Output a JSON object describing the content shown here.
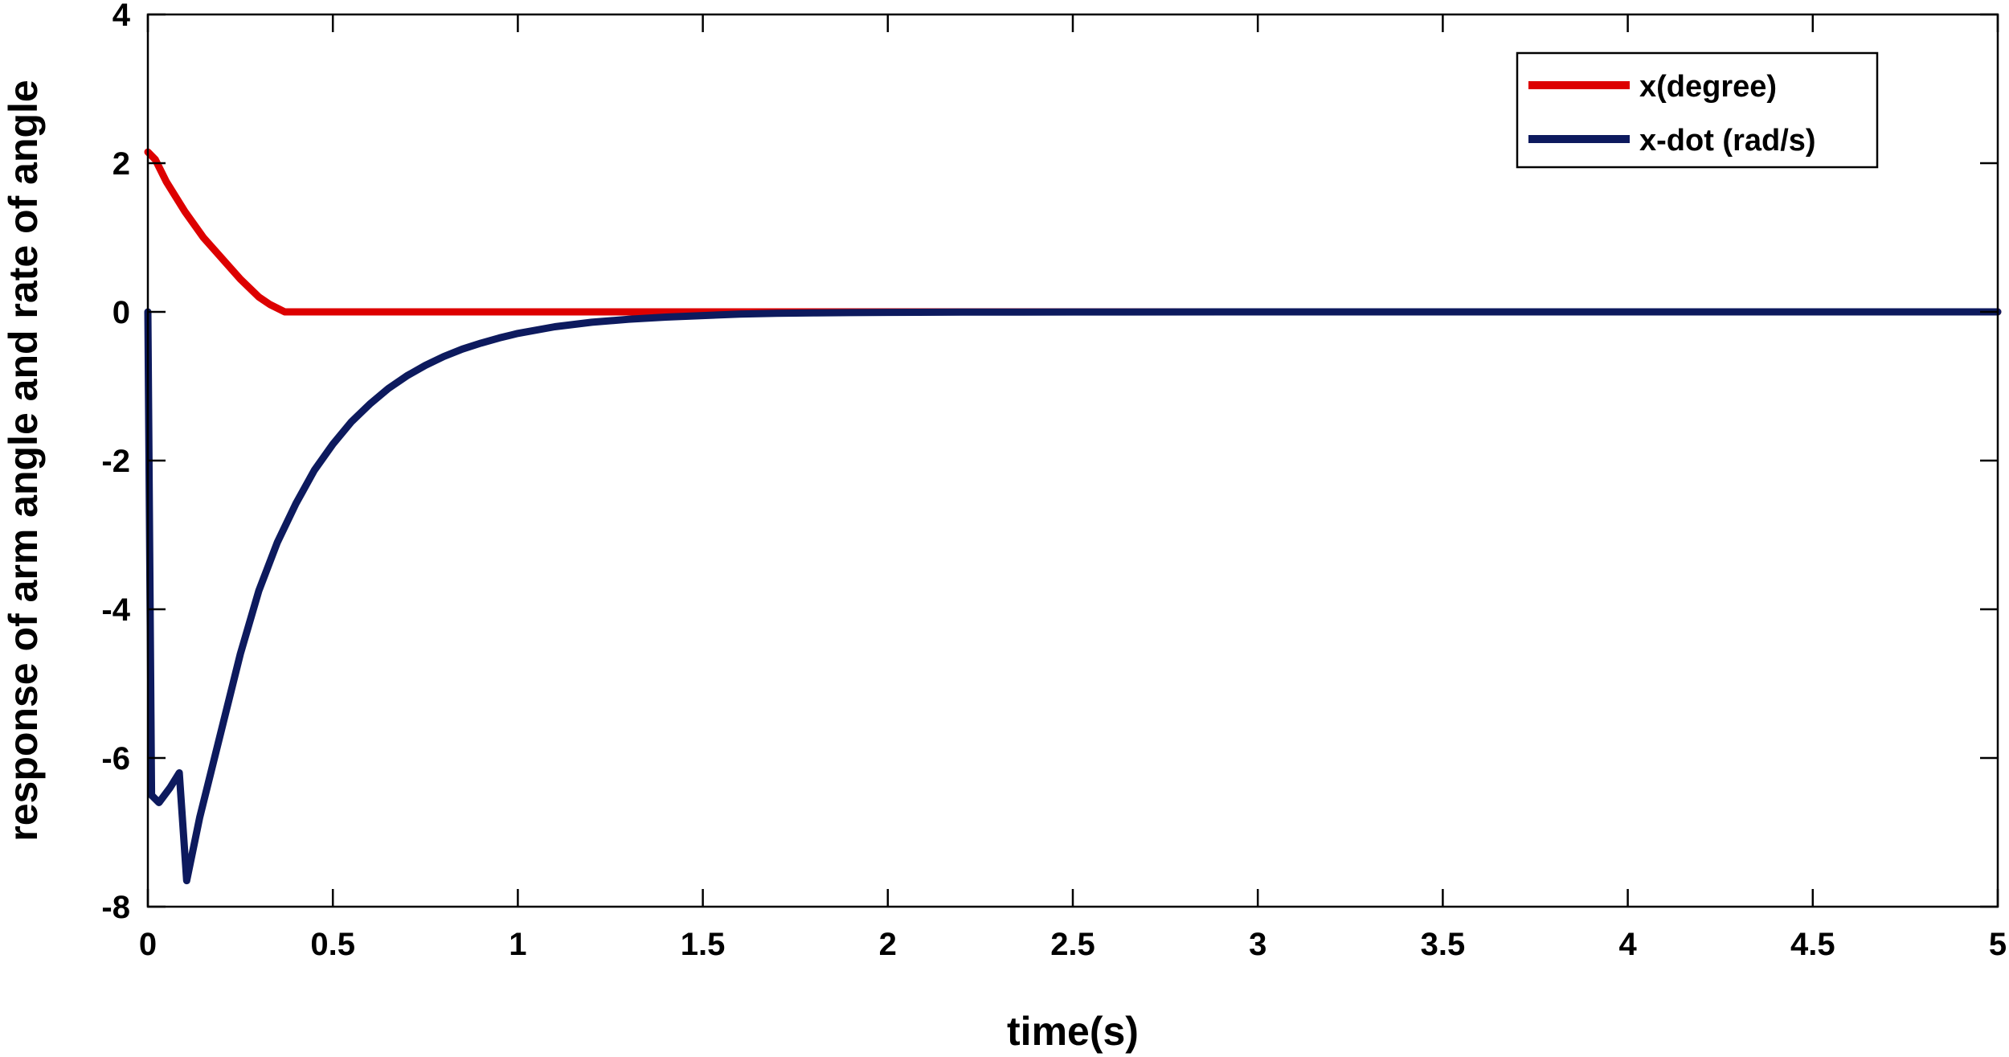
{
  "chart_data": {
    "type": "line",
    "title": "",
    "xlabel": "time(s)",
    "ylabel": "response of arm angle and rate of angle",
    "xlim": [
      0,
      5
    ],
    "ylim": [
      -8,
      4
    ],
    "xticks": [
      0,
      0.5,
      1,
      1.5,
      2,
      2.5,
      3,
      3.5,
      4,
      4.5,
      5
    ],
    "yticks": [
      -8,
      -6,
      -4,
      -2,
      0,
      2,
      4
    ],
    "xtick_labels": [
      "0",
      "0.5",
      "1",
      "1.5",
      "2",
      "2.5",
      "3",
      "3.5",
      "4",
      "4.5",
      "5"
    ],
    "ytick_labels": [
      "-8",
      "-6",
      "-4",
      "-2",
      "0",
      "2",
      "4"
    ],
    "grid": false,
    "legend_position": "top-right",
    "series": [
      {
        "name": "x(degree)",
        "color": "#dd0000",
        "x": [
          0,
          0.02,
          0.05,
          0.1,
          0.15,
          0.2,
          0.25,
          0.3,
          0.33,
          0.37,
          0.5,
          1,
          1.5,
          2,
          2.5,
          3,
          3.5,
          4,
          4.5,
          5
        ],
        "y": [
          2.15,
          2.05,
          1.75,
          1.35,
          1.0,
          0.72,
          0.44,
          0.2,
          0.1,
          0.0,
          0.0,
          0.0,
          0.0,
          0.0,
          0.0,
          0.0,
          0.0,
          0.0,
          0.0,
          0.0
        ]
      },
      {
        "name": "x-dot (rad/s)",
        "color": "#0d1a5e",
        "x": [
          0,
          0.01,
          0.03,
          0.06,
          0.085,
          0.105,
          0.14,
          0.2,
          0.25,
          0.3,
          0.35,
          0.4,
          0.45,
          0.5,
          0.55,
          0.6,
          0.65,
          0.7,
          0.75,
          0.8,
          0.85,
          0.9,
          0.95,
          1.0,
          1.1,
          1.2,
          1.3,
          1.4,
          1.5,
          1.6,
          1.7,
          1.8,
          1.9,
          2.0,
          2.2,
          2.5,
          3,
          3.5,
          4,
          4.5,
          5
        ],
        "y": [
          0,
          -6.5,
          -6.6,
          -6.4,
          -6.2,
          -7.65,
          -6.8,
          -5.6,
          -4.6,
          -3.75,
          -3.1,
          -2.58,
          -2.13,
          -1.78,
          -1.48,
          -1.24,
          -1.03,
          -0.86,
          -0.72,
          -0.6,
          -0.5,
          -0.42,
          -0.35,
          -0.29,
          -0.2,
          -0.14,
          -0.1,
          -0.07,
          -0.05,
          -0.03,
          -0.02,
          -0.014,
          -0.01,
          -0.007,
          -0.003,
          -0.001,
          0,
          0,
          0,
          0,
          0
        ]
      }
    ]
  }
}
